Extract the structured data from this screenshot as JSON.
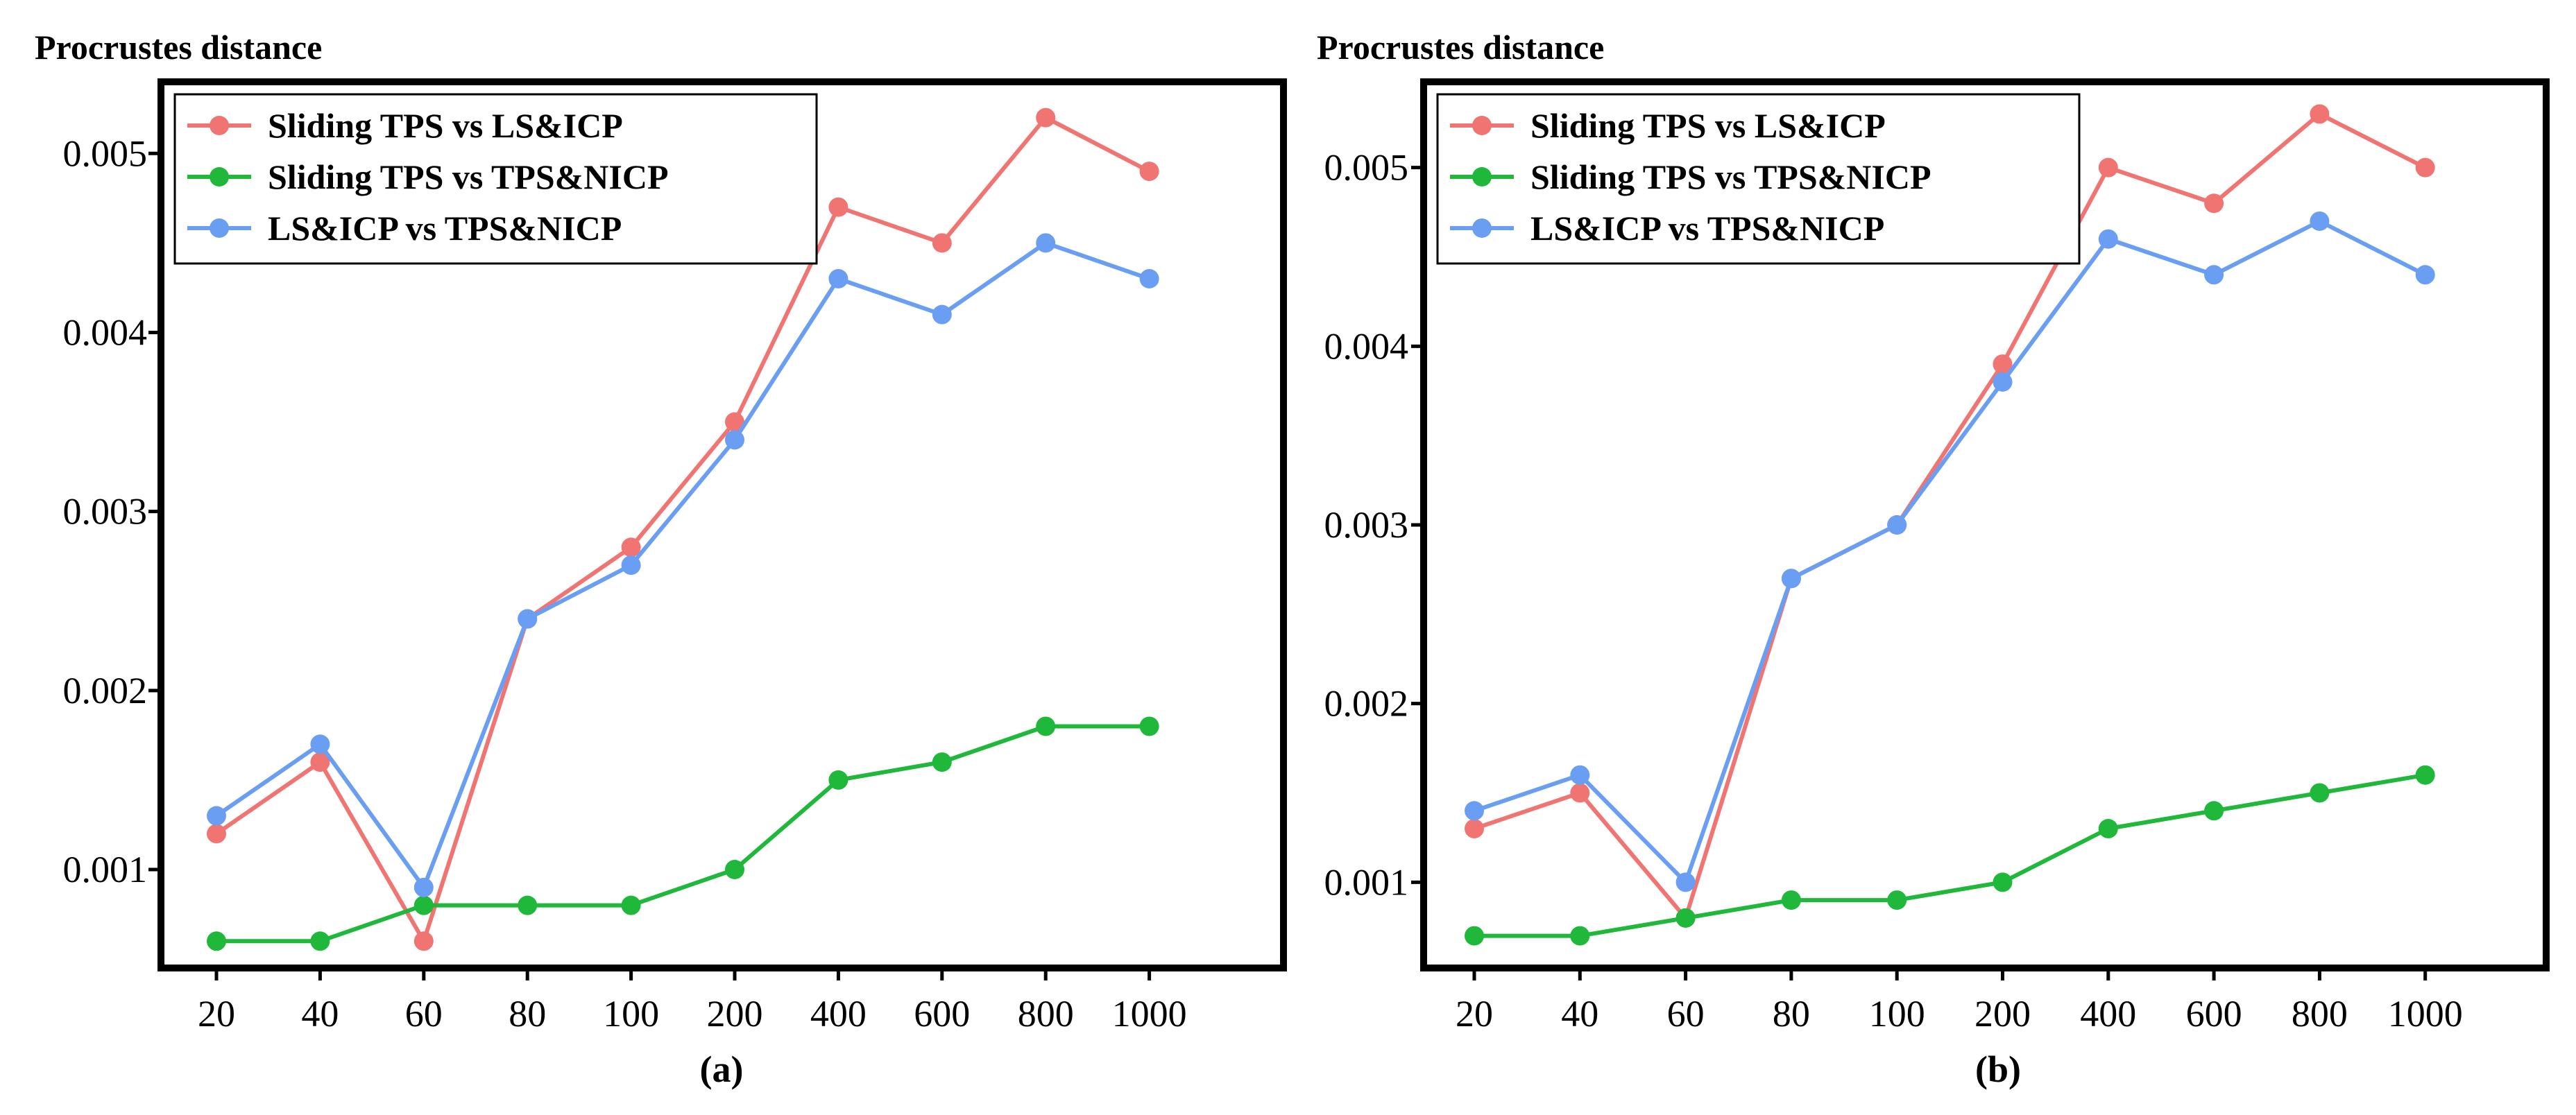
{
  "colors": {
    "series_1": "#f07572",
    "series_2": "#1fb83a",
    "series_3": "#6a9ef2",
    "frame": "#000000"
  },
  "chart_data": [
    {
      "type": "line",
      "title": "",
      "ylabel": "Procrustes distance",
      "xlabel": "",
      "caption": "(a)",
      "categories": [
        "20",
        "40",
        "60",
        "80",
        "100",
        "200",
        "400",
        "600",
        "800",
        "1000"
      ],
      "ylim": [
        0.00045,
        0.0054
      ],
      "yticks": [
        0.001,
        0.002,
        0.003,
        0.004,
        0.005
      ],
      "ytick_labels": [
        "0.001",
        "0.002",
        "0.003",
        "0.004",
        "0.005"
      ],
      "legend_position": "top-left",
      "series": [
        {
          "name": "Sliding TPS vs LS&ICP",
          "color_key": "series_1",
          "values": [
            0.0012,
            0.0016,
            0.0006,
            0.0024,
            0.0028,
            0.0035,
            0.0047,
            0.0045,
            0.0052,
            0.0049
          ]
        },
        {
          "name": "Sliding TPS vs TPS&NICP",
          "color_key": "series_2",
          "values": [
            0.0006,
            0.0006,
            0.0008,
            0.0008,
            0.0008,
            0.001,
            0.0015,
            0.0016,
            0.0018,
            0.0018
          ]
        },
        {
          "name": "LS&ICP vs TPS&NICP",
          "color_key": "series_3",
          "values": [
            0.0013,
            0.0017,
            0.0009,
            0.0024,
            0.0027,
            0.0034,
            0.0043,
            0.0041,
            0.0045,
            0.0043
          ]
        }
      ]
    },
    {
      "type": "line",
      "title": "",
      "ylabel": "Procrustes distance",
      "xlabel": "",
      "caption": "(b)",
      "categories": [
        "20",
        "40",
        "60",
        "80",
        "100",
        "200",
        "400",
        "600",
        "800",
        "1000"
      ],
      "ylim": [
        0.00052,
        0.00548
      ],
      "yticks": [
        0.001,
        0.002,
        0.003,
        0.004,
        0.005
      ],
      "ytick_labels": [
        "0.001",
        "0.002",
        "0.003",
        "0.004",
        "0.005"
      ],
      "legend_position": "top-left",
      "series": [
        {
          "name": "Sliding TPS vs LS&ICP",
          "color_key": "series_1",
          "values": [
            0.0013,
            0.0015,
            0.0008,
            0.0027,
            0.003,
            0.0039,
            0.005,
            0.0048,
            0.0053,
            0.005
          ]
        },
        {
          "name": "Sliding TPS vs TPS&NICP",
          "color_key": "series_2",
          "values": [
            0.0007,
            0.0007,
            0.0008,
            0.0009,
            0.0009,
            0.001,
            0.0013,
            0.0014,
            0.0015,
            0.0016
          ]
        },
        {
          "name": "LS&ICP vs TPS&NICP",
          "color_key": "series_3",
          "values": [
            0.0014,
            0.0016,
            0.001,
            0.0027,
            0.003,
            0.0038,
            0.0046,
            0.0044,
            0.0047,
            0.0044
          ]
        }
      ]
    }
  ]
}
